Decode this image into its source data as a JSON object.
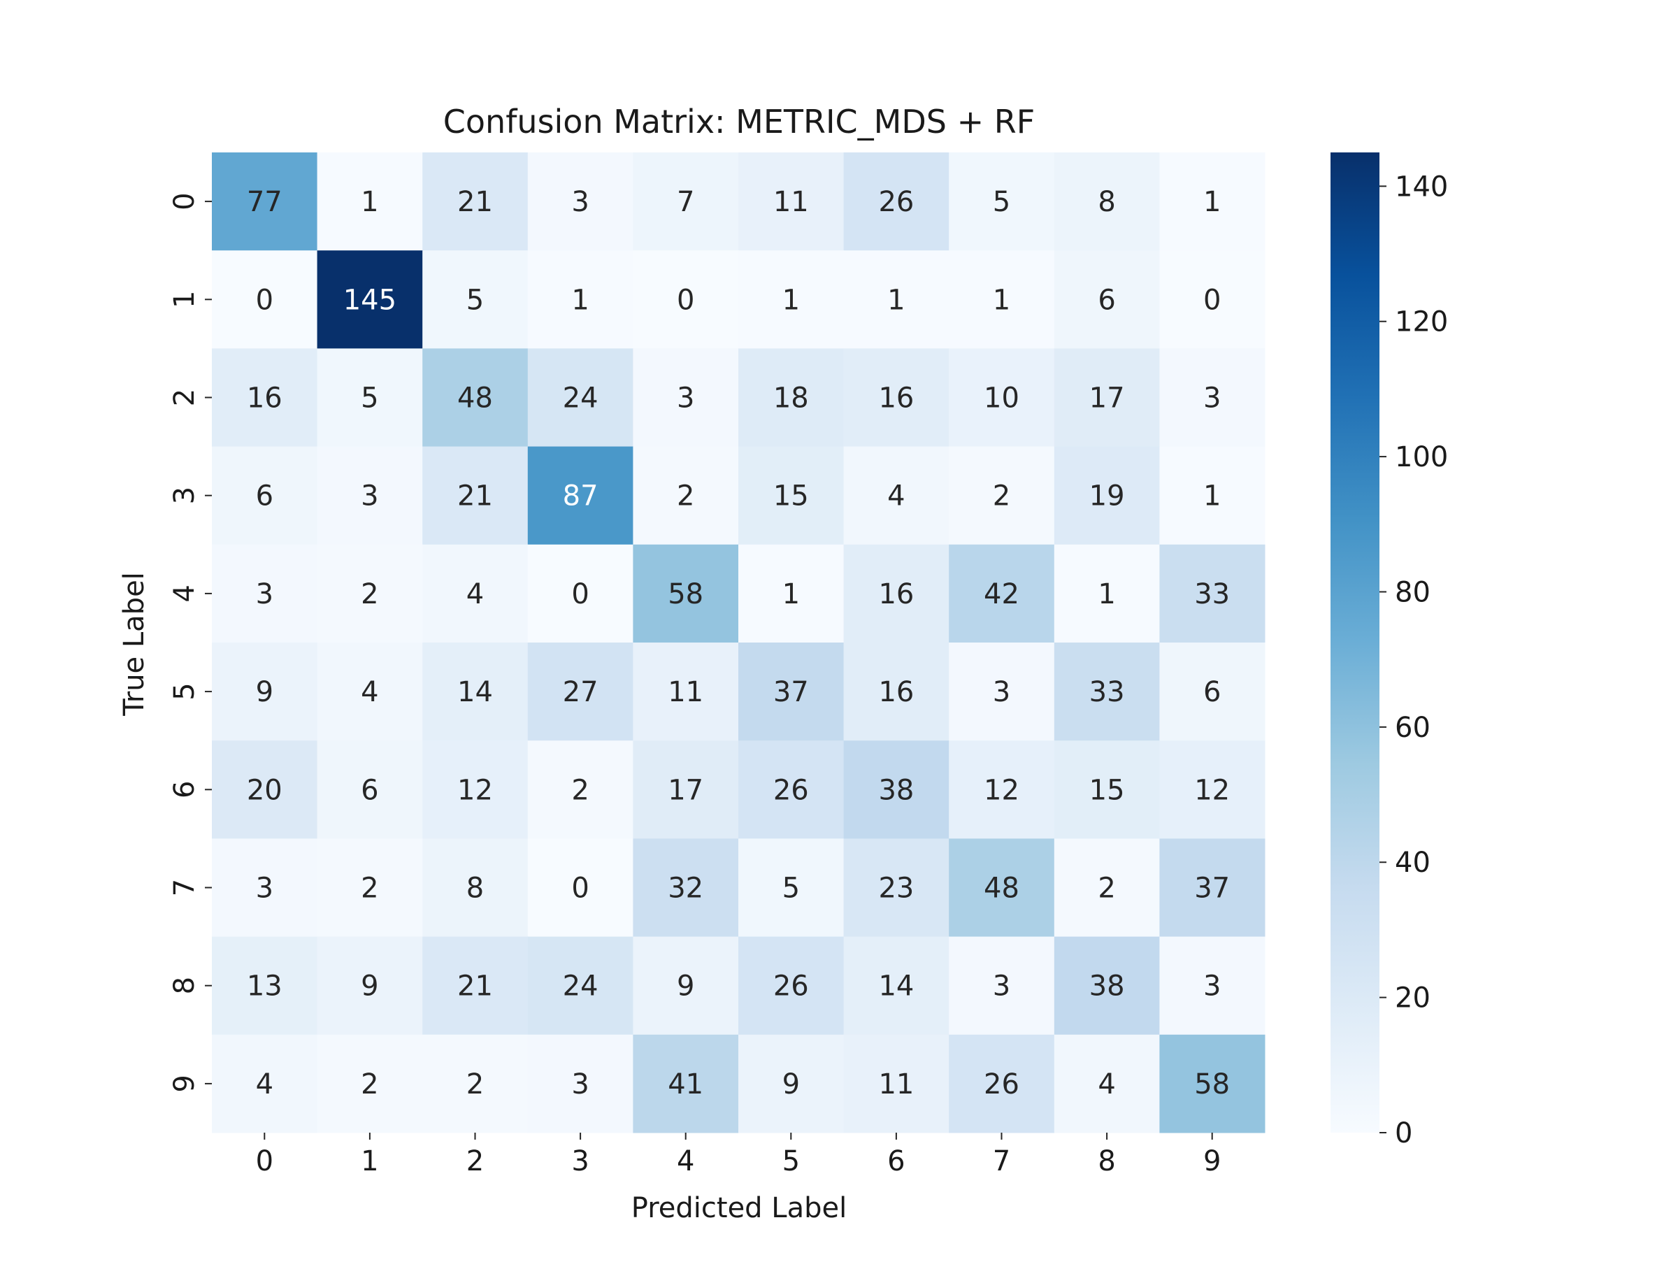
{
  "chart_data": {
    "type": "heatmap",
    "title": "Confusion Matrix: METRIC_MDS + RF",
    "xlabel": "Predicted Label",
    "ylabel": "True Label",
    "x_categories": [
      "0",
      "1",
      "2",
      "3",
      "4",
      "5",
      "6",
      "7",
      "8",
      "9"
    ],
    "y_categories": [
      "0",
      "1",
      "2",
      "3",
      "4",
      "5",
      "6",
      "7",
      "8",
      "9"
    ],
    "values": [
      [
        77,
        1,
        21,
        3,
        7,
        11,
        26,
        5,
        8,
        1
      ],
      [
        0,
        145,
        5,
        1,
        0,
        1,
        1,
        1,
        6,
        0
      ],
      [
        16,
        5,
        48,
        24,
        3,
        18,
        16,
        10,
        17,
        3
      ],
      [
        6,
        3,
        21,
        87,
        2,
        15,
        4,
        2,
        19,
        1
      ],
      [
        3,
        2,
        4,
        0,
        58,
        1,
        16,
        42,
        1,
        33
      ],
      [
        9,
        4,
        14,
        27,
        11,
        37,
        16,
        3,
        33,
        6
      ],
      [
        20,
        6,
        12,
        2,
        17,
        26,
        38,
        12,
        15,
        12
      ],
      [
        3,
        2,
        8,
        0,
        32,
        5,
        23,
        48,
        2,
        37
      ],
      [
        13,
        9,
        21,
        24,
        9,
        26,
        14,
        3,
        38,
        3
      ],
      [
        4,
        2,
        2,
        3,
        41,
        9,
        11,
        26,
        4,
        58
      ]
    ],
    "colormap": "Blues",
    "value_range": [
      0,
      145
    ],
    "colorbar_ticks": [
      0,
      20,
      40,
      60,
      80,
      100,
      120,
      140
    ],
    "colorbar_position": "right"
  }
}
